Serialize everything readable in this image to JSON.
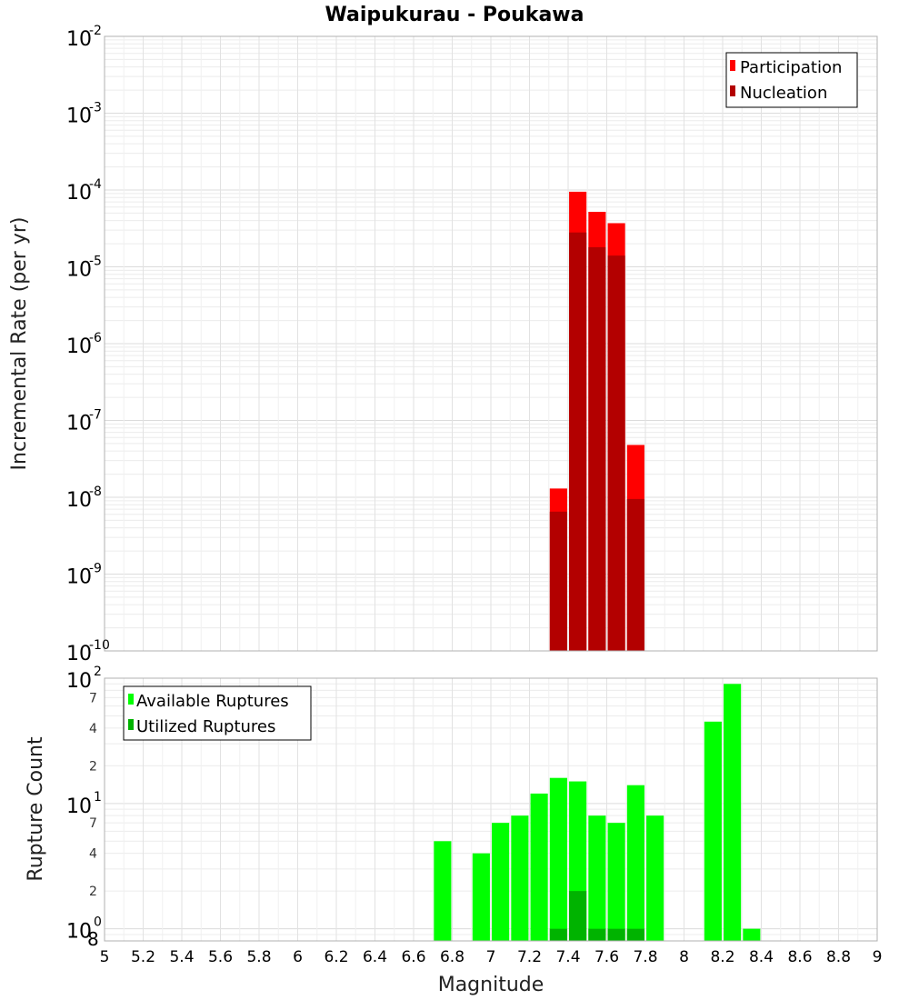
{
  "chart_data": {
    "title": "Waipukurau - Poukawa",
    "x_axis": {
      "label": "Magnitude",
      "range": [
        5,
        9
      ],
      "ticks": [
        "5",
        "5.2",
        "5.4",
        "5.6",
        "5.8",
        "6",
        "6.2",
        "6.4",
        "6.6",
        "6.8",
        "7",
        "7.2",
        "7.4",
        "7.6",
        "7.8",
        "8",
        "8.2",
        "8.4",
        "8.6",
        "8.8",
        "9"
      ]
    },
    "top": {
      "type": "bar",
      "scale": "log",
      "ylabel": "Incremental Rate (per yr)",
      "ylim": [
        1e-10,
        0.01
      ],
      "y_ticks": [
        {
          "base": "10",
          "exp": "-10"
        },
        {
          "base": "10",
          "exp": "-9"
        },
        {
          "base": "10",
          "exp": "-8"
        },
        {
          "base": "10",
          "exp": "-7"
        },
        {
          "base": "10",
          "exp": "-6"
        },
        {
          "base": "10",
          "exp": "-5"
        },
        {
          "base": "10",
          "exp": "-4"
        },
        {
          "base": "10",
          "exp": "-3"
        },
        {
          "base": "10",
          "exp": "-2"
        }
      ],
      "series": [
        {
          "name": "Participation",
          "color": "#ff0000",
          "points": [
            [
              7.35,
              1.3e-08
            ],
            [
              7.45,
              9.5e-05
            ],
            [
              7.55,
              5.2e-05
            ],
            [
              7.65,
              3.7e-05
            ],
            [
              7.75,
              4.8e-08
            ]
          ]
        },
        {
          "name": "Nucleation",
          "color": "#b30000",
          "points": [
            [
              7.35,
              6.5e-09
            ],
            [
              7.45,
              2.8e-05
            ],
            [
              7.55,
              1.8e-05
            ],
            [
              7.65,
              1.4e-05
            ],
            [
              7.75,
              9.5e-09
            ]
          ]
        }
      ],
      "legend": {
        "position": "top-right",
        "items": [
          "Participation",
          "Nucleation"
        ]
      }
    },
    "bottom": {
      "type": "bar",
      "scale": "log",
      "ylabel": "Rupture Count",
      "ylim": [
        0.8,
        100
      ],
      "y_major_ticks": [
        {
          "base": "10",
          "exp": "0",
          "value": 1
        },
        {
          "base": "10",
          "exp": "1",
          "value": 10
        },
        {
          "base": "10",
          "exp": "2",
          "value": 100
        }
      ],
      "y_minor_ticks": [
        {
          "label": "8",
          "value": 0.8
        },
        {
          "label": "2",
          "value": 2
        },
        {
          "label": "4",
          "value": 4
        },
        {
          "label": "7",
          "value": 7
        },
        {
          "label": "2",
          "value": 20
        },
        {
          "label": "4",
          "value": 40
        },
        {
          "label": "7",
          "value": 70
        }
      ],
      "series": [
        {
          "name": "Available Ruptures",
          "color": "#00ff00",
          "points": [
            [
              6.75,
              5
            ],
            [
              6.95,
              4
            ],
            [
              7.05,
              7
            ],
            [
              7.15,
              8
            ],
            [
              7.25,
              12
            ],
            [
              7.35,
              16
            ],
            [
              7.45,
              15
            ],
            [
              7.55,
              8
            ],
            [
              7.65,
              7
            ],
            [
              7.75,
              14
            ],
            [
              7.85,
              8
            ],
            [
              8.15,
              45
            ],
            [
              8.25,
              90
            ],
            [
              8.35,
              1
            ]
          ]
        },
        {
          "name": "Utilized Ruptures",
          "color": "#00b300",
          "points": [
            [
              7.35,
              1
            ],
            [
              7.45,
              2
            ],
            [
              7.55,
              1
            ],
            [
              7.65,
              1
            ],
            [
              7.75,
              1
            ]
          ]
        }
      ],
      "legend": {
        "position": "top-left",
        "items": [
          "Available Ruptures",
          "Utilized Ruptures"
        ]
      }
    }
  }
}
